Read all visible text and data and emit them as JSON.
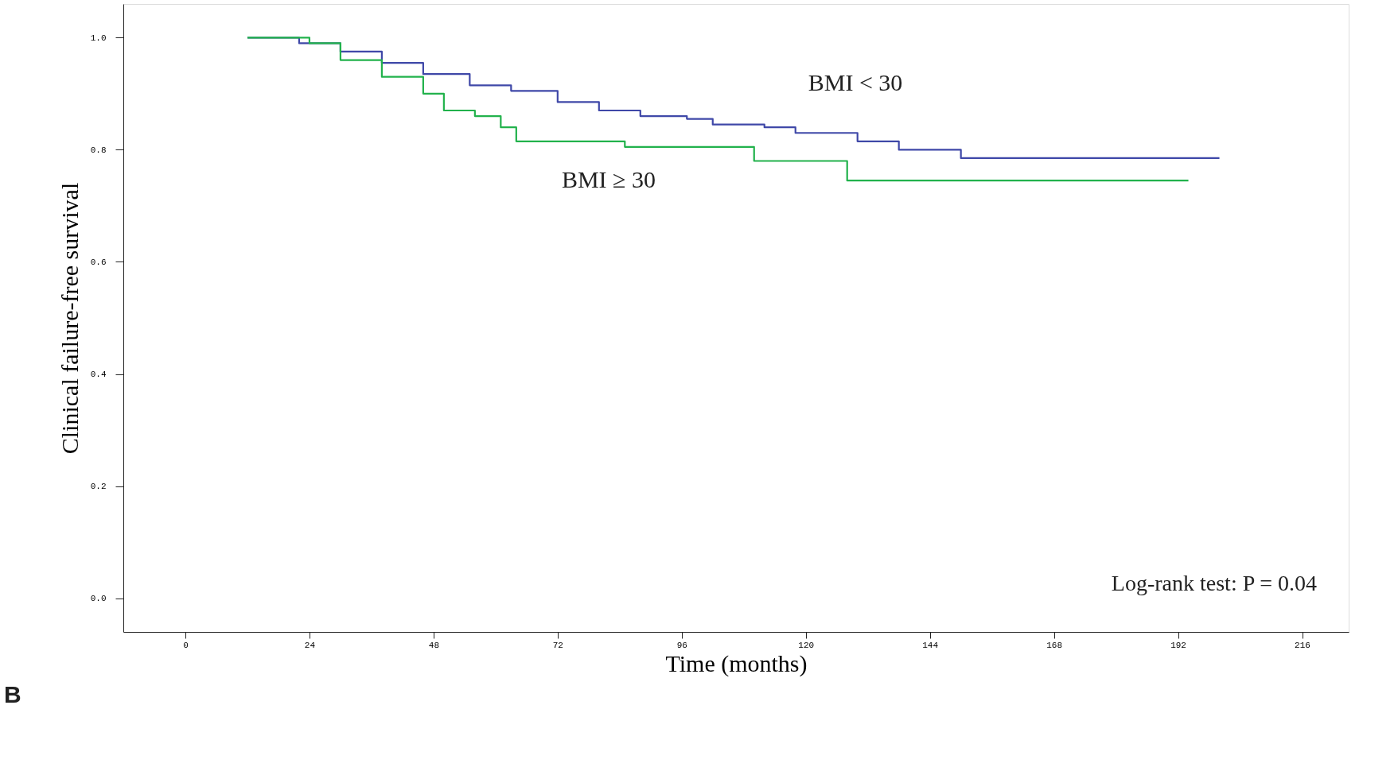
{
  "chart_data": {
    "type": "step",
    "xlabel": "Time (months)",
    "ylabel": "Clinical failure-free survival",
    "xlim": [
      -12,
      225
    ],
    "ylim": [
      -0.06,
      1.06
    ],
    "xticks": [
      0,
      24,
      48,
      72,
      96,
      120,
      144,
      168,
      192,
      216
    ],
    "yticks": [
      {
        "value": 0,
        "label": "0.0"
      },
      {
        "value": 0.2,
        "label": "0.2"
      },
      {
        "value": 0.4,
        "label": "0.4"
      },
      {
        "value": 0.6,
        "label": "0.6"
      },
      {
        "value": 0.8,
        "label": "0.8"
      },
      {
        "value": 1,
        "label": "1.0"
      }
    ],
    "grid": false,
    "marker": "none",
    "line_style": "solid",
    "series": [
      {
        "name": "BMI < 30",
        "color": "#3f48a8",
        "x": [
          12,
          22,
          30,
          38,
          46,
          55,
          63,
          72,
          80,
          88,
          97,
          102,
          112,
          118,
          130,
          138,
          150,
          200
        ],
        "values": [
          1.0,
          0.99,
          0.975,
          0.955,
          0.935,
          0.915,
          0.905,
          0.885,
          0.87,
          0.86,
          0.855,
          0.845,
          0.84,
          0.83,
          0.815,
          0.8,
          0.785,
          0.785
        ]
      },
      {
        "name": "BMI ≥ 30",
        "color": "#22b24c",
        "x": [
          12,
          24,
          30,
          38,
          46,
          50,
          56,
          61,
          64,
          85,
          110,
          128,
          194
        ],
        "values": [
          1.0,
          0.99,
          0.96,
          0.93,
          0.9,
          0.87,
          0.86,
          0.84,
          0.815,
          0.805,
          0.78,
          0.745,
          0.745
        ]
      }
    ],
    "annotations": [
      "Log-rank test: P = 0.04",
      "B"
    ]
  }
}
